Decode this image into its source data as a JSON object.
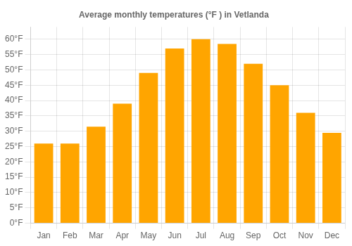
{
  "chart_data": {
    "type": "bar",
    "title": "Average monthly temperatures (°F ) in Vetlanda",
    "categories": [
      "Jan",
      "Feb",
      "Mar",
      "Apr",
      "May",
      "Jun",
      "Jul",
      "Aug",
      "Sep",
      "Oct",
      "Nov",
      "Dec"
    ],
    "values": [
      26,
      26,
      31.5,
      39,
      49,
      57,
      60,
      58.5,
      52,
      45,
      36,
      29.5
    ],
    "color": "#FFA500",
    "ylim": [
      0,
      64
    ],
    "yticks": [
      {
        "value": 0,
        "label": "0°F"
      },
      {
        "value": 5,
        "label": "5°F"
      },
      {
        "value": 10,
        "label": "10°F"
      },
      {
        "value": 15,
        "label": "15°F"
      },
      {
        "value": 20,
        "label": "20°F"
      },
      {
        "value": 25,
        "label": "25°F"
      },
      {
        "value": 30,
        "label": "30°F"
      },
      {
        "value": 35,
        "label": "35°F"
      },
      {
        "value": 40,
        "label": "40°F"
      },
      {
        "value": 45,
        "label": "45°F"
      },
      {
        "value": 50,
        "label": "50°F"
      },
      {
        "value": 55,
        "label": "55°F"
      },
      {
        "value": 60,
        "label": "60°F"
      }
    ],
    "grid": true
  }
}
